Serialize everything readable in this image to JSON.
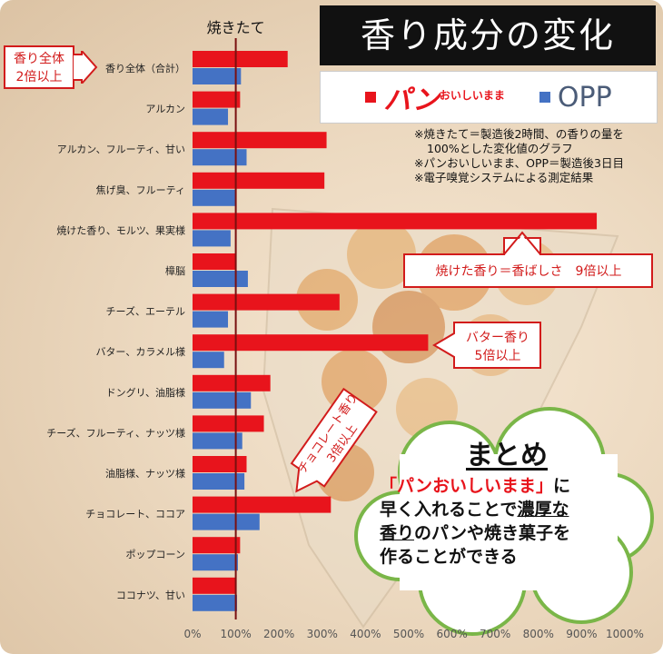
{
  "chart_data": {
    "type": "bar",
    "orientation": "horizontal",
    "title": "香り成分の変化",
    "categories": [
      "香り全体（合計）",
      "アルカン",
      "アルカン、フルーティ、甘い",
      "焦げ臭、フルーティ",
      "焼けた香り、モルツ、果実様",
      "樟脳",
      "チーズ、エーテル",
      "バター、カラメル様",
      "ドングリ、油脂様",
      "チーズ、フルーティ、ナッツ様",
      "油脂様、ナッツ様",
      "チョコレート、ココア",
      "ポップコーン",
      "ココナツ、甘い"
    ],
    "series": [
      {
        "name": "パンおいしいまま",
        "color": "#e8141c",
        "values": [
          220,
          110,
          310,
          305,
          935,
          100,
          340,
          545,
          180,
          165,
          125,
          320,
          110,
          100
        ]
      },
      {
        "name": "OPP",
        "color": "#4472c4",
        "values": [
          112,
          82,
          125,
          100,
          88,
          128,
          82,
          73,
          135,
          115,
          120,
          155,
          105,
          103
        ]
      }
    ],
    "xlim": [
      0,
      1000
    ],
    "xticks": [
      "0%",
      "100%",
      "200%",
      "300%",
      "400%",
      "500%",
      "600%",
      "700%",
      "800%",
      "900%",
      "1000%"
    ],
    "reference": {
      "label": "焼きたて",
      "value": 100
    }
  },
  "legend": {
    "red_main": "パン",
    "red_sub": "おいしいまま",
    "blue": "OPP"
  },
  "notes": [
    "※焼きたて＝製造後2時間、の香りの量を",
    "100%とした変化値のグラフ",
    "※パンおいしいまま、OPP＝製造後3日目",
    "※電子嗅覚システムによる測定結果"
  ],
  "callouts": {
    "total": [
      "香り全体",
      "2倍以上"
    ],
    "roasted": "焼けた香り＝香ばしさ　9倍以上",
    "butter": [
      "バター香り",
      "5倍以上"
    ],
    "chocolate": [
      "チョコレート香り",
      "3倍以上"
    ]
  },
  "summary": {
    "title": "まとめ",
    "l1": "「パンおいしいまま」",
    "l1b": "に",
    "l2a": "早く入れることで",
    "l2b": "濃厚な",
    "l3a": "香り",
    "l3b": "のパンや焼き菓子を",
    "l4": "作ることができる"
  },
  "colors": {
    "red": "#e8141c",
    "blue": "#4472c4",
    "ref": "#7a1010"
  }
}
